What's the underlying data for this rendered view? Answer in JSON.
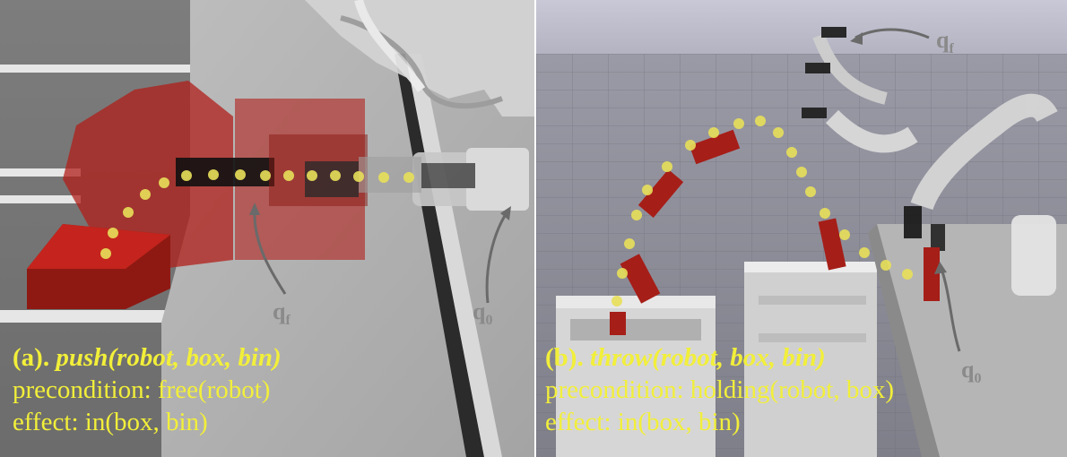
{
  "panel_a": {
    "label_prefix": "(a).",
    "action": "push(robot, box, bin)",
    "precondition": "precondition: free(robot)",
    "effect": "effect: in(box, bin)",
    "q_final": "q",
    "q_final_sub": "f",
    "q_initial": "q",
    "q_initial_sub": "0"
  },
  "panel_b": {
    "label_prefix": "(b).",
    "action": "throw(robot, box, bin)",
    "precondition": "precondition: holding(robot, box)",
    "effect": "effect: in(box, bin)",
    "q_final": "q",
    "q_final_sub": "f",
    "q_initial": "q",
    "q_initial_sub": "0"
  },
  "colors": {
    "caption": "#f2ef3a",
    "box_red": "#b01f1a",
    "trajectory_dot": "#e8e05a",
    "label_gray": "#8a8a8a"
  }
}
